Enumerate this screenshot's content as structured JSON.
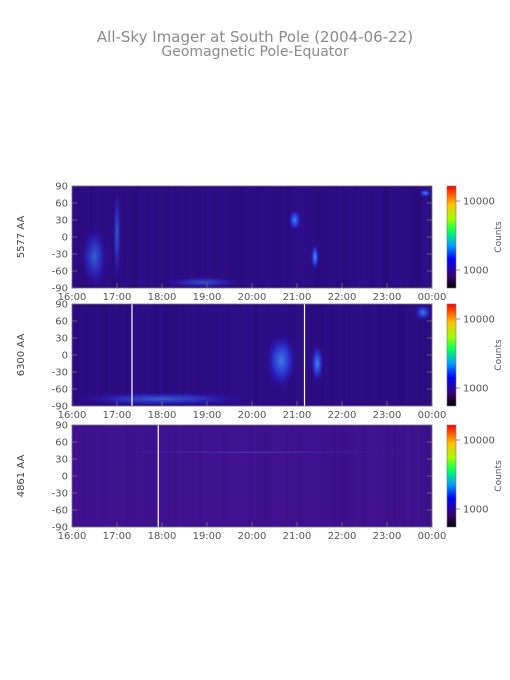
{
  "title": {
    "line1": "All-Sky Imager at South Pole (2004-06-22)",
    "line2": "Geomagnetic Pole-Equator"
  },
  "chart_data": [
    {
      "type": "heatmap",
      "ylabel": "5577 AA",
      "x_ticks": [
        "16:00",
        "17:00",
        "18:00",
        "19:00",
        "20:00",
        "21:00",
        "22:00",
        "23:00",
        "00:00"
      ],
      "y_ticks": [
        "90",
        "60",
        "30",
        "0",
        "-30",
        "-60",
        "-90"
      ],
      "ylim": [
        -90,
        90
      ],
      "colorbar": {
        "label": "Counts",
        "ticks": [
          "10000",
          "1000"
        ],
        "scale": "log"
      },
      "white_lines": [],
      "features": [
        {
          "t_start": 16.2,
          "t_end": 16.8,
          "lat_min": -90,
          "lat_max": 20,
          "intensity": 0.55
        },
        {
          "t_start": 16.9,
          "t_end": 17.1,
          "lat_min": -80,
          "lat_max": 90,
          "intensity": 0.5
        },
        {
          "t_start": 20.8,
          "t_end": 21.1,
          "lat_min": 10,
          "lat_max": 50,
          "intensity": 0.8
        },
        {
          "t_start": 21.3,
          "t_end": 21.5,
          "lat_min": -60,
          "lat_max": -10,
          "intensity": 0.9
        },
        {
          "t_start": 18.0,
          "t_end": 19.8,
          "lat_min": -90,
          "lat_max": -70,
          "intensity": 0.45
        },
        {
          "t_start": 23.7,
          "t_end": 24.0,
          "lat_min": 70,
          "lat_max": 85,
          "intensity": 0.8
        }
      ]
    },
    {
      "type": "heatmap",
      "ylabel": "6300 AA",
      "x_ticks": [
        "16:00",
        "17:00",
        "18:00",
        "19:00",
        "20:00",
        "21:00",
        "22:00",
        "23:00",
        "00:00"
      ],
      "y_ticks": [
        "90",
        "60",
        "30",
        "0",
        "-30",
        "-60",
        "-90"
      ],
      "ylim": [
        -90,
        90
      ],
      "colorbar": {
        "label": "Counts",
        "ticks": [
          "10000",
          "1000"
        ],
        "scale": "log"
      },
      "white_lines": [
        "17:20",
        "21:10"
      ],
      "features": [
        {
          "t_start": 16.0,
          "t_end": 20.0,
          "lat_min": -90,
          "lat_max": -65,
          "intensity": 0.55
        },
        {
          "t_start": 20.3,
          "t_end": 21.0,
          "lat_min": -60,
          "lat_max": 40,
          "intensity": 0.75
        },
        {
          "t_start": 21.3,
          "t_end": 21.6,
          "lat_min": -50,
          "lat_max": 20,
          "intensity": 0.8
        },
        {
          "t_start": 23.6,
          "t_end": 24.0,
          "lat_min": 60,
          "lat_max": 90,
          "intensity": 0.7
        }
      ]
    },
    {
      "type": "heatmap",
      "ylabel": "4861 AA",
      "x_ticks": [
        "16:00",
        "17:00",
        "18:00",
        "19:00",
        "20:00",
        "21:00",
        "22:00",
        "23:00",
        "00:00"
      ],
      "y_ticks": [
        "90",
        "60",
        "30",
        "0",
        "-30",
        "-60",
        "-90"
      ],
      "ylim": [
        -90,
        90
      ],
      "colorbar": {
        "label": "Counts",
        "ticks": [
          "10000",
          "1000"
        ],
        "scale": "log"
      },
      "white_lines": [
        "17:55"
      ],
      "features": [
        {
          "t_start": 16.0,
          "t_end": 24.0,
          "lat_min": 40,
          "lat_max": 44,
          "intensity": 0.35
        }
      ]
    }
  ]
}
